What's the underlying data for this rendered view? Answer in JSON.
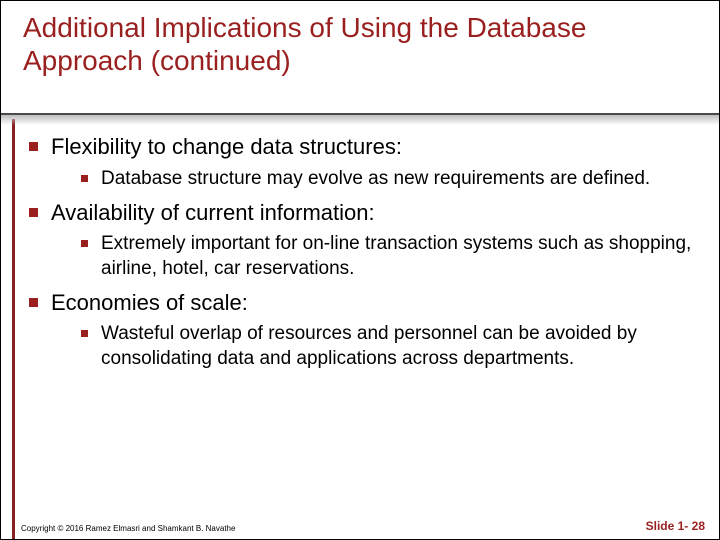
{
  "colors": {
    "accent": "#9a1f1f",
    "rule": "#8a1f1f",
    "hr": "#4a4a4a",
    "shadow": "#bdbdbd",
    "text": "#000000",
    "background": "#ffffff"
  },
  "typography": {
    "title_fontsize": 28,
    "lvl1_fontsize": 22,
    "lvl2_fontsize": 19,
    "footer_fontsize": 8,
    "slidenum_fontsize": 12,
    "font_family": "Arial"
  },
  "title": "Additional Implications of Using the Database Approach (continued)",
  "bullets": [
    {
      "text": "Flexibility to change data structures:",
      "sub": [
        {
          "text": "Database structure may evolve as new requirements are defined."
        }
      ]
    },
    {
      "text": "Availability of current information:",
      "sub": [
        {
          "text": "Extremely important for on-line transaction systems such as shopping, airline, hotel, car reservations."
        }
      ]
    },
    {
      "text": "Economies of scale:",
      "sub": [
        {
          "text": "Wasteful overlap of resources and personnel can be avoided by consolidating data and applications across departments."
        }
      ]
    }
  ],
  "footer": {
    "copyright": "Copyright © 2016 Ramez Elmasri and Shamkant B. Navathe",
    "slidenum": "Slide 1- 28"
  }
}
